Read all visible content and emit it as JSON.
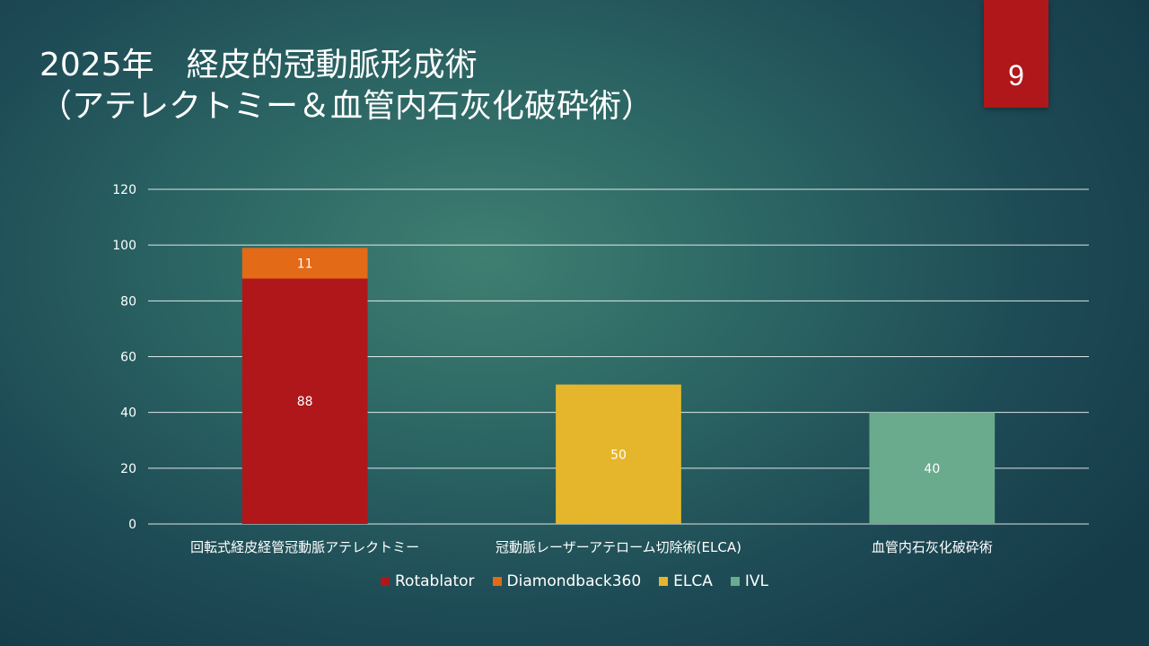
{
  "slide": {
    "title_line1": "2025年　経皮的冠動脈形成術",
    "title_line2": "（アテレクトミー＆血管内石灰化破砕術）",
    "page_number": "9"
  },
  "chart_data": {
    "type": "bar",
    "stacked": true,
    "categories": [
      "回転式経皮経管冠動脈アテレクトミー",
      "冠動脈レーザーアテローム切除術(ELCA)",
      "血管内石灰化破砕術"
    ],
    "series": [
      {
        "name": "Rotablator",
        "color": "#b0171a",
        "values": [
          88,
          null,
          null
        ]
      },
      {
        "name": "Diamondback360",
        "color": "#e36a17",
        "values": [
          11,
          null,
          null
        ]
      },
      {
        "name": "ELCA",
        "color": "#e5b62c",
        "values": [
          null,
          50,
          null
        ]
      },
      {
        "name": "IVL",
        "color": "#6aab8e",
        "values": [
          null,
          null,
          40
        ]
      }
    ],
    "ylim": [
      0,
      120
    ],
    "yticks": [
      0,
      20,
      40,
      60,
      80,
      100,
      120
    ],
    "grid": true,
    "legend": "bottom",
    "xlabel": "",
    "ylabel": ""
  }
}
